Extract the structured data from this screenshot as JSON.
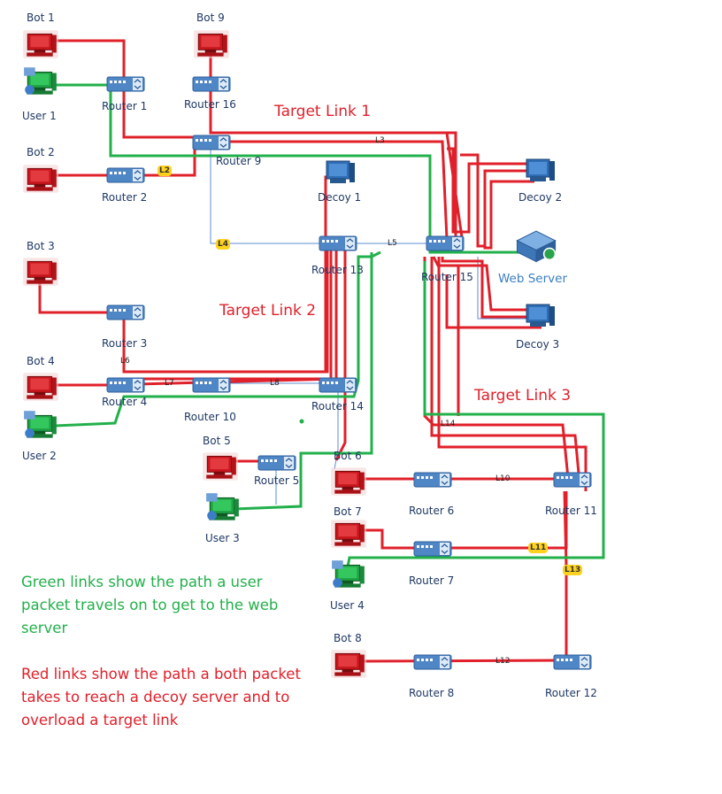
{
  "colors": {
    "red": "#e0202a",
    "green": "#22b04b",
    "router": "#4f86c6",
    "thin": "#5b8ed0",
    "label": "#1f3864",
    "tag": "#ffd21f"
  },
  "labels": {
    "bot1": "Bot 1",
    "bot9": "Bot 9",
    "bot2": "Bot 2",
    "bot3": "Bot 3",
    "bot4": "Bot 4",
    "bot5": "Bot 5",
    "bot6": "Bot 6",
    "bot7": "Bot 7",
    "bot8": "Bot 8",
    "user1": "User 1",
    "user2": "User 2",
    "user3": "User 3",
    "user4": "User 4",
    "router1": "Router 1",
    "router2": "Router 2",
    "router3": "Router 3",
    "router4": "Router 4",
    "router5": "Router 5",
    "router6": "Router 6",
    "router7": "Router 7",
    "router8": "Router 8",
    "router9": "Router 9",
    "router10": "Router 10",
    "router11": "Router 11",
    "router12": "Router 12",
    "router13": "Router 13",
    "router14": "Router 14",
    "router15": "Router 15",
    "router16": "Router 16",
    "decoy1": "Decoy 1",
    "decoy2": "Decoy 2",
    "decoy3": "Decoy 3",
    "web_server": "Web Server"
  },
  "target_links": {
    "link1": "Target Link 1",
    "link2": "Target Link 2",
    "link3": "Target Link 3"
  },
  "link_tags": {
    "l2": "L2",
    "l4": "L4",
    "l5": "L5",
    "l11": "L11",
    "l13": "L13",
    "l3": "L3",
    "l6": "L6",
    "l7": "L7",
    "l8": "L8",
    "l10": "L10",
    "l12": "L12",
    "l14": "L14"
  },
  "legend": {
    "green_text": "Green links show the path a user packet travels on to get to the web server",
    "red_text": "Red links show the path a both packet takes to reach a decoy server and to overload a target link"
  }
}
